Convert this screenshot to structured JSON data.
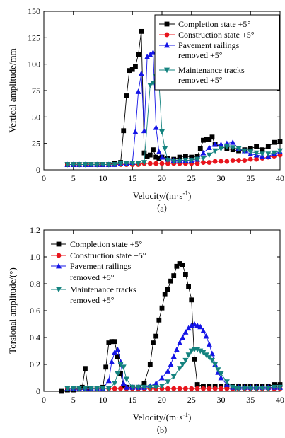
{
  "legend": {
    "completion": "Completion state +5°",
    "construction": "Construction state +5°",
    "railings_1": "Pavement railings",
    "railings_2": "removed +5°",
    "tracks_1": "Maintenance tracks",
    "tracks_2": "removed +5°"
  },
  "colors": {
    "completion": "#000000",
    "construction": "#e8141c",
    "railings": "#1414e6",
    "tracks": "#14837f"
  },
  "chart_data": [
    {
      "type": "line",
      "caption": "（a）",
      "xlabel": "Velocity/(m·s",
      "xlabel_exp": "-1",
      "xlabel_end": ")",
      "ylabel": "Vertical amplitude/mm",
      "xlim": [
        0,
        40
      ],
      "ylim": [
        0,
        150
      ],
      "xticks": [
        0,
        5,
        10,
        15,
        20,
        25,
        30,
        35,
        40
      ],
      "yticks": [
        0,
        25,
        50,
        75,
        100,
        125,
        150
      ],
      "series": [
        {
          "key": "completion",
          "name": "Completion state +5°",
          "marker": "square",
          "x": [
            4,
            5,
            6,
            7,
            8,
            9,
            10,
            11,
            12,
            13,
            13.5,
            14,
            14.5,
            15,
            15.5,
            16,
            16.5,
            17,
            17.5,
            18,
            18.5,
            19,
            19.5,
            20,
            21,
            22,
            23,
            24,
            25,
            26,
            26.5,
            27,
            27.5,
            28,
            28.5,
            29,
            30,
            31,
            32,
            33,
            34,
            35,
            36,
            37,
            38,
            39,
            40
          ],
          "y": [
            5,
            5,
            5,
            5,
            5,
            5,
            5,
            5,
            6,
            7,
            37,
            70,
            94,
            95,
            98,
            109,
            131,
            16,
            13,
            14,
            19,
            12,
            11,
            12,
            11,
            10,
            12,
            13,
            12,
            13,
            20,
            28,
            29,
            29,
            31,
            24,
            22,
            20,
            19,
            18,
            19,
            20,
            22,
            19,
            22,
            26,
            27
          ]
        },
        {
          "key": "construction",
          "name": "Construction state +5°",
          "marker": "circle",
          "x": [
            4,
            5,
            6,
            7,
            8,
            9,
            10,
            11,
            12,
            13,
            14,
            15,
            16,
            17,
            18,
            19,
            20,
            21,
            22,
            23,
            24,
            25,
            26,
            27,
            28,
            29,
            30,
            31,
            32,
            33,
            34,
            35,
            36,
            37,
            38,
            39,
            40
          ],
          "y": [
            5,
            5,
            5,
            5,
            5,
            5,
            5,
            5,
            5,
            5,
            5,
            5,
            5,
            6,
            6,
            6,
            6,
            6,
            6,
            6,
            6,
            6,
            6,
            7,
            7,
            8,
            8,
            8,
            9,
            9,
            9,
            10,
            10,
            11,
            12,
            13,
            14
          ]
        },
        {
          "key": "railings",
          "name": "Pavement railings removed +5°",
          "marker": "triangle-up",
          "x": [
            4,
            5,
            6,
            7,
            8,
            9,
            10,
            11,
            12,
            13,
            14,
            15,
            15.5,
            16,
            16.5,
            17,
            17.5,
            18,
            18.5,
            19,
            19.5,
            20,
            21,
            22,
            23,
            24,
            25,
            26,
            27,
            28,
            29,
            30,
            31,
            32,
            33,
            34,
            35,
            36,
            37,
            38,
            39,
            40
          ],
          "y": [
            5,
            5,
            5,
            5,
            5,
            5,
            5,
            5,
            5,
            6,
            6,
            7,
            36,
            74,
            91,
            37,
            107,
            109,
            111,
            40,
            17,
            12,
            10,
            9,
            9,
            9,
            9,
            10,
            16,
            21,
            24,
            24,
            25,
            26,
            20,
            18,
            15,
            14,
            13,
            13,
            15,
            17
          ]
        },
        {
          "key": "tracks",
          "name": "Maintenance tracks removed +5°",
          "marker": "triangle-down",
          "x": [
            4,
            5,
            6,
            7,
            8,
            9,
            10,
            11,
            12,
            13,
            14,
            15,
            16,
            17,
            18,
            18.5,
            19,
            19.5,
            20,
            20.5,
            21,
            22,
            23,
            24,
            25,
            26,
            27,
            28,
            29,
            30,
            31,
            32,
            33,
            34,
            35,
            36,
            37,
            38,
            39,
            40
          ],
          "y": [
            5,
            5,
            5,
            5,
            5,
            5,
            5,
            5,
            5,
            6,
            6,
            6,
            6,
            7,
            80,
            82,
            88,
            83,
            36,
            20,
            9,
            8,
            8,
            9,
            9,
            10,
            11,
            14,
            18,
            20,
            22,
            21,
            20,
            18,
            17,
            16,
            15,
            15,
            16,
            18
          ]
        }
      ]
    },
    {
      "type": "line",
      "caption": "（b）",
      "xlabel": "Velocity/(m·s",
      "xlabel_exp": "-1",
      "xlabel_end": ")",
      "ylabel": "Torsional amplitude/(°)",
      "xlim": [
        0,
        40
      ],
      "ylim": [
        0,
        1.2
      ],
      "xticks": [
        0,
        5,
        10,
        15,
        20,
        25,
        30,
        35,
        40
      ],
      "yticks": [
        0.0,
        0.2,
        0.4,
        0.6,
        0.8,
        1.0,
        1.2
      ],
      "yticks_labels": [
        "0",
        "0.2",
        "0.4",
        "0.6",
        "0.8",
        "1.0",
        "1.2"
      ],
      "series": [
        {
          "key": "completion",
          "name": "Completion state +5°",
          "marker": "square",
          "x": [
            3,
            4,
            5,
            6,
            6.5,
            7,
            7.5,
            8,
            9,
            10,
            10.5,
            11,
            11.5,
            12,
            12.5,
            13,
            13.5,
            14,
            15,
            16,
            17,
            18,
            18.5,
            19,
            19.5,
            20,
            20.5,
            21,
            21.5,
            22,
            22.5,
            23,
            23.5,
            24,
            24.5,
            25,
            25.5,
            26,
            27,
            28,
            29,
            30,
            31,
            32,
            33,
            34,
            35,
            36,
            37,
            38,
            39,
            40
          ],
          "y": [
            0.0,
            0.01,
            0.01,
            0.02,
            0.03,
            0.17,
            0.02,
            0.02,
            0.02,
            0.03,
            0.18,
            0.36,
            0.37,
            0.37,
            0.26,
            0.13,
            0.04,
            0.03,
            0.03,
            0.03,
            0.06,
            0.2,
            0.36,
            0.41,
            0.53,
            0.62,
            0.72,
            0.76,
            0.82,
            0.86,
            0.93,
            0.95,
            0.94,
            0.87,
            0.78,
            0.68,
            0.24,
            0.05,
            0.04,
            0.04,
            0.04,
            0.04,
            0.04,
            0.04,
            0.04,
            0.04,
            0.04,
            0.04,
            0.04,
            0.04,
            0.05,
            0.05
          ]
        },
        {
          "key": "construction",
          "name": "Construction state +5°",
          "marker": "circle",
          "x": [
            4,
            5,
            6,
            7,
            8,
            9,
            10,
            11,
            12,
            13,
            14,
            15,
            16,
            17,
            18,
            19,
            20,
            21,
            22,
            23,
            24,
            25,
            26,
            27,
            28,
            29,
            30,
            31,
            32,
            33,
            34,
            35,
            36,
            37,
            38,
            39,
            40
          ],
          "y": [
            0.02,
            0.02,
            0.02,
            0.02,
            0.02,
            0.02,
            0.02,
            0.02,
            0.02,
            0.02,
            0.02,
            0.02,
            0.02,
            0.02,
            0.02,
            0.02,
            0.02,
            0.02,
            0.02,
            0.02,
            0.02,
            0.02,
            0.02,
            0.02,
            0.02,
            0.02,
            0.02,
            0.02,
            0.02,
            0.02,
            0.02,
            0.02,
            0.02,
            0.02,
            0.02,
            0.02,
            0.02
          ]
        },
        {
          "key": "railings",
          "name": "Pavement railings removed +5°",
          "marker": "triangle-up",
          "x": [
            4,
            5,
            6,
            7,
            8,
            9,
            10,
            11,
            11.5,
            12,
            12.5,
            13,
            13.5,
            14,
            15,
            16,
            17,
            18,
            19,
            20,
            21,
            21.5,
            22,
            22.5,
            23,
            23.5,
            24,
            24.5,
            25,
            25.5,
            26,
            26.5,
            27,
            27.5,
            28,
            28.5,
            29,
            29.5,
            30,
            31,
            32,
            33,
            34,
            35,
            36,
            37,
            38,
            39,
            40
          ],
          "y": [
            0.02,
            0.02,
            0.02,
            0.02,
            0.02,
            0.02,
            0.02,
            0.08,
            0.22,
            0.29,
            0.31,
            0.22,
            0.06,
            0.03,
            0.03,
            0.03,
            0.03,
            0.04,
            0.06,
            0.1,
            0.15,
            0.2,
            0.26,
            0.31,
            0.36,
            0.4,
            0.44,
            0.47,
            0.49,
            0.5,
            0.49,
            0.48,
            0.45,
            0.41,
            0.35,
            0.28,
            0.2,
            0.14,
            0.1,
            0.05,
            0.03,
            0.03,
            0.03,
            0.03,
            0.03,
            0.03,
            0.03,
            0.03,
            0.03
          ]
        },
        {
          "key": "tracks",
          "name": "Maintenance tracks removed +5°",
          "marker": "triangle-down",
          "x": [
            4,
            5,
            6,
            7,
            8,
            9,
            10,
            11,
            12,
            12.5,
            13,
            13.5,
            14,
            15,
            16,
            17,
            18,
            19,
            20,
            21,
            22,
            23,
            23.5,
            24,
            24.5,
            25,
            25.5,
            26,
            26.5,
            27,
            27.5,
            28,
            28.5,
            29,
            29.5,
            30,
            31,
            32,
            32.5,
            33,
            34,
            35,
            36,
            37,
            38,
            39,
            40
          ],
          "y": [
            0.02,
            0.02,
            0.02,
            0.02,
            0.02,
            0.02,
            0.02,
            0.02,
            0.06,
            0.13,
            0.2,
            0.18,
            0.09,
            0.03,
            0.03,
            0.03,
            0.03,
            0.03,
            0.04,
            0.07,
            0.11,
            0.17,
            0.2,
            0.23,
            0.27,
            0.3,
            0.31,
            0.31,
            0.3,
            0.29,
            0.27,
            0.25,
            0.23,
            0.2,
            0.16,
            0.13,
            0.07,
            0.03,
            0.02,
            0.02,
            0.02,
            0.02,
            0.02,
            0.02,
            0.02,
            0.03,
            0.03
          ]
        }
      ]
    }
  ]
}
